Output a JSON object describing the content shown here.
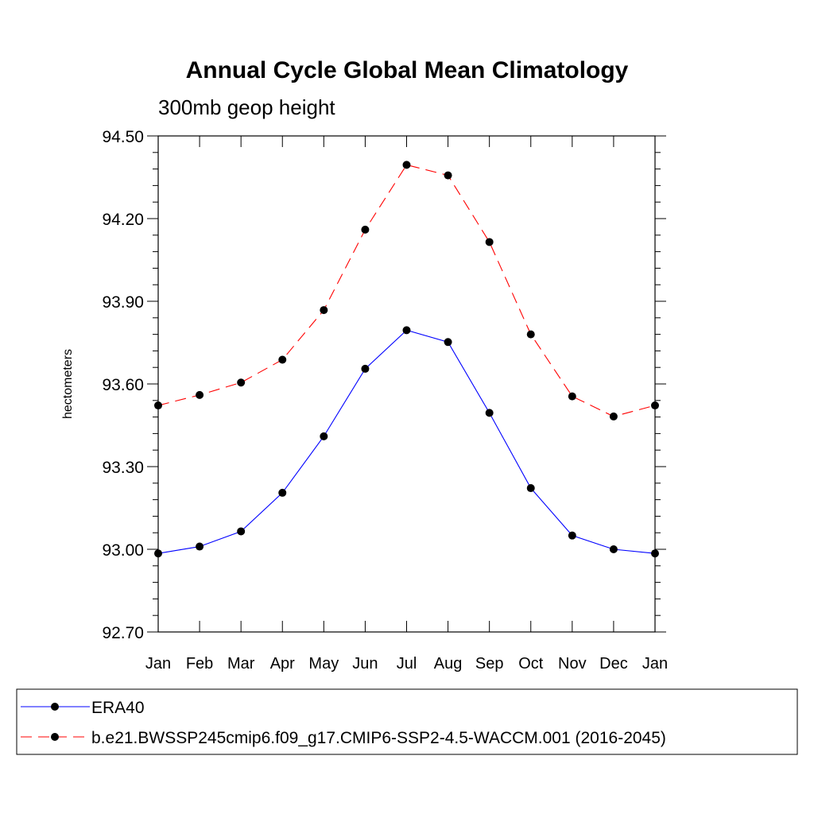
{
  "chart_data": {
    "type": "line",
    "title": "Annual Cycle Global Mean Climatology",
    "subtitle": "300mb geop height",
    "xlabel": "",
    "ylabel": "hectometers",
    "categories": [
      "Jan",
      "Feb",
      "Mar",
      "Apr",
      "May",
      "Jun",
      "Jul",
      "Aug",
      "Sep",
      "Oct",
      "Nov",
      "Dec",
      "Jan"
    ],
    "ylim": [
      92.7,
      94.5
    ],
    "yticks": [
      "94.50",
      "94.20",
      "93.90",
      "93.60",
      "93.30",
      "93.00",
      "92.70"
    ],
    "ytick_values": [
      94.5,
      94.2,
      93.9,
      93.6,
      93.3,
      93.0,
      92.7
    ],
    "grid": false,
    "legend_position": "bottom",
    "series": [
      {
        "name": "ERA40",
        "color": "#0000ff",
        "line_style": "solid",
        "marker": "filled-circle",
        "values": [
          92.985,
          93.01,
          93.065,
          93.205,
          93.41,
          93.655,
          93.795,
          93.752,
          93.495,
          93.222,
          93.05,
          93.0,
          92.985
        ]
      },
      {
        "name": "b.e21.BWSSP245cmip6.f09_g17.CMIP6-SSP2-4.5-WACCM.001 (2016-2045)",
        "color": "#ff0000",
        "line_style": "dashed",
        "marker": "filled-circle",
        "values": [
          93.522,
          93.56,
          93.605,
          93.688,
          93.868,
          94.16,
          94.395,
          94.357,
          94.115,
          93.78,
          93.555,
          93.482,
          93.522
        ]
      }
    ]
  }
}
